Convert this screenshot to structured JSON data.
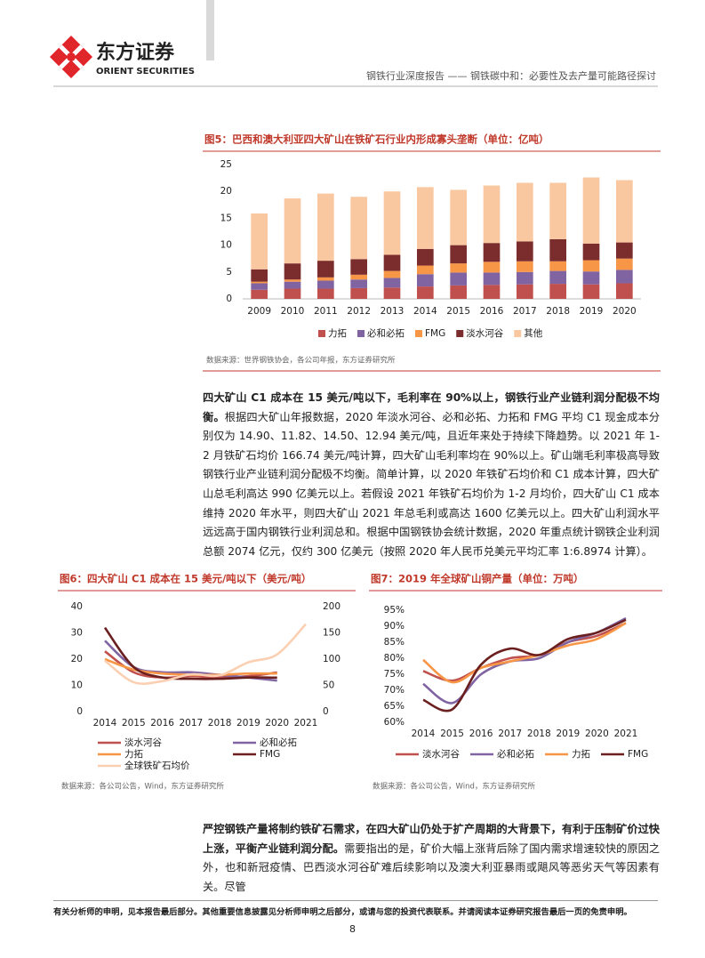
{
  "header": {
    "logo_cn": "东方证券",
    "logo_en": "ORIENT SECURITIES",
    "report": "钢铁行业深度报告 —— 钢铁碳中和：必要性及去产量可能路径探讨"
  },
  "chart_data": [
    {
      "type": "bar",
      "stacked": true,
      "title": "图5：巴西和澳大利亚四大矿山在铁矿石行业内形成寡头垄断（单位：亿吨）",
      "categories": [
        "2009",
        "2010",
        "2011",
        "2012",
        "2013",
        "2014",
        "2015",
        "2016",
        "2017",
        "2018",
        "2019",
        "2020"
      ],
      "series": [
        {
          "name": "力拓",
          "color": "#c0504d",
          "values": [
            1.7,
            1.9,
            1.9,
            2.0,
            2.1,
            2.3,
            2.5,
            2.6,
            2.7,
            2.8,
            2.7,
            2.9
          ]
        },
        {
          "name": "必和必拓",
          "color": "#8064a2",
          "values": [
            1.2,
            1.3,
            1.5,
            1.6,
            1.8,
            2.3,
            2.4,
            2.3,
            2.3,
            2.4,
            2.4,
            2.5
          ]
        },
        {
          "name": "FMG",
          "color": "#f79646",
          "values": [
            0.3,
            0.4,
            0.6,
            0.9,
            1.3,
            1.6,
            1.7,
            2.0,
            2.0,
            1.8,
            2.1,
            2.1
          ]
        },
        {
          "name": "淡水河谷",
          "color": "#7b2c2c",
          "values": [
            2.3,
            3.0,
            3.1,
            2.9,
            3.0,
            3.1,
            3.4,
            3.5,
            3.7,
            4.1,
            3.1,
            3.0
          ]
        },
        {
          "name": "其他",
          "color": "#fac8a0",
          "values": [
            10.4,
            12.1,
            12.5,
            11.6,
            11.8,
            11.5,
            10.3,
            10.7,
            10.9,
            10.5,
            12.3,
            11.6
          ]
        }
      ],
      "ylim": [
        0,
        25
      ],
      "yticks": [
        0,
        5,
        10,
        15,
        20,
        25
      ],
      "source": "数据来源：世界钢铁协会，各公司年报，东方证券研究所"
    },
    {
      "type": "line",
      "title": "图6：四大矿山 C1 成本在 15 美元/吨以下（美元/吨）",
      "categories": [
        "2014",
        "2015",
        "2016",
        "2017",
        "2018",
        "2019",
        "2020",
        "2021"
      ],
      "series": [
        {
          "name": "淡水河谷",
          "color": "#c0504d",
          "values": [
            23,
            15,
            13,
            13.5,
            13,
            13.5,
            14.9,
            null
          ]
        },
        {
          "name": "必和必拓",
          "color": "#8064a2",
          "values": [
            27,
            17,
            15,
            15,
            14,
            13,
            11.82,
            null
          ]
        },
        {
          "name": "力拓",
          "color": "#f79646",
          "values": [
            20,
            16,
            14.5,
            14,
            14,
            14.5,
            14.5,
            null
          ]
        },
        {
          "name": "FMG",
          "color": "#6b1f1f",
          "values": [
            32,
            17,
            13,
            12.5,
            12.5,
            13,
            12.94,
            null
          ]
        },
        {
          "name": "全球铁矿石均价",
          "color": "#fbcfb2",
          "axis": "y2",
          "values": [
            97,
            56,
            58,
            71,
            69,
            94,
            109,
            166.74
          ]
        }
      ],
      "ylim": [
        0,
        40
      ],
      "yticks": [
        0,
        10,
        20,
        30,
        40
      ],
      "y2lim": [
        0,
        200
      ],
      "y2ticks": [
        0,
        50,
        100,
        150,
        200
      ],
      "source": "数据来源：各公司公告，Wind，东方证券研究所"
    },
    {
      "type": "line",
      "title": "图7：2019 年全球矿山铜产量（单位：万吨）",
      "categories": [
        "2014",
        "2015",
        "2016",
        "2017",
        "2018",
        "2019",
        "2020",
        "2021"
      ],
      "series": [
        {
          "name": "淡水河谷",
          "color": "#c0504d",
          "values": [
            76,
            73,
            77,
            80,
            81,
            85,
            87,
            91
          ]
        },
        {
          "name": "必和必拓",
          "color": "#8064a2",
          "values": [
            72,
            66,
            75,
            79,
            80,
            85,
            88,
            92.5
          ]
        },
        {
          "name": "力拓",
          "color": "#f79646",
          "values": [
            79.5,
            72.5,
            77,
            79,
            81,
            84,
            86,
            91
          ]
        },
        {
          "name": "FMG",
          "color": "#6b1f1f",
          "values": [
            67,
            64,
            78,
            83,
            81,
            86,
            88,
            92
          ]
        }
      ],
      "ylim": [
        60,
        95
      ],
      "yticks": [
        {
          "value": 60,
          "label": "60%"
        },
        {
          "value": 65,
          "label": "65%"
        },
        {
          "value": 70,
          "label": "70%"
        },
        {
          "value": 75,
          "label": "75%"
        },
        {
          "value": 80,
          "label": "80%"
        },
        {
          "value": 85,
          "label": "85%"
        },
        {
          "value": 90,
          "label": "90%"
        },
        {
          "value": 95,
          "label": "95%"
        }
      ],
      "source": "数据来源：各公司公告，Wind，东方证券研究所"
    }
  ],
  "paragraphs": [
    {
      "lead": "四大矿山 C1 成本在 15 美元/吨以下，毛利率在 90%以上，钢铁行业产业链利润分配极不均衡。",
      "text": "根据四大矿山年报数据，2020 年淡水河谷、必和必拓、力拓和 FMG 平均 C1 现金成本分别仅为 14.90、11.82、14.50、12.94 美元/吨，且近年来处于持续下降趋势。以 2021 年 1-2 月铁矿石均价 166.74 美元/吨计算，四大矿山毛利率均在 90%以上。矿山端毛利率极高导致钢铁行业产业链利润分配极不均衡。简单计算，以 2020 年铁矿石均价和 C1 成本计算，四大矿山总毛利高达 990 亿美元以上。若假设 2021 年铁矿石均价为 1-2 月均价，四大矿山 C1 成本维持 2020 年水平，则四大矿山 2021 年总毛利或高达 1600 亿美元以上。四大矿山利润水平远远高于国内钢铁行业利润总和。根据中国钢铁协会统计数据，2020 年重点统计钢铁企业利润总额 2074 亿元，仅约 300 亿美元（按照 2020 年人民币兑美元平均汇率 1:6.8974 计算）。"
    },
    {
      "lead": "严控钢铁产量将制约铁矿石需求，在四大矿山仍处于扩产周期的大背景下，有利于压制矿价过快上涨，平衡产业链利润分配。",
      "text": "需要指出的是，矿价大幅上涨背后除了国内需求增速较快的原因之外，也和新冠疫情、巴西淡水河谷矿难后续影响以及澳大利亚暴雨或飓风等恶劣天气等因素有关。尽管"
    }
  ],
  "footer": {
    "disclaimer": "有关分析师的申明，见本报告最后部分。其他重要信息披露见分析师申明之后部分，或请与您的投资代表联系。并请阅读本证券研究报告最后一页的免责申明。",
    "page": 8
  }
}
